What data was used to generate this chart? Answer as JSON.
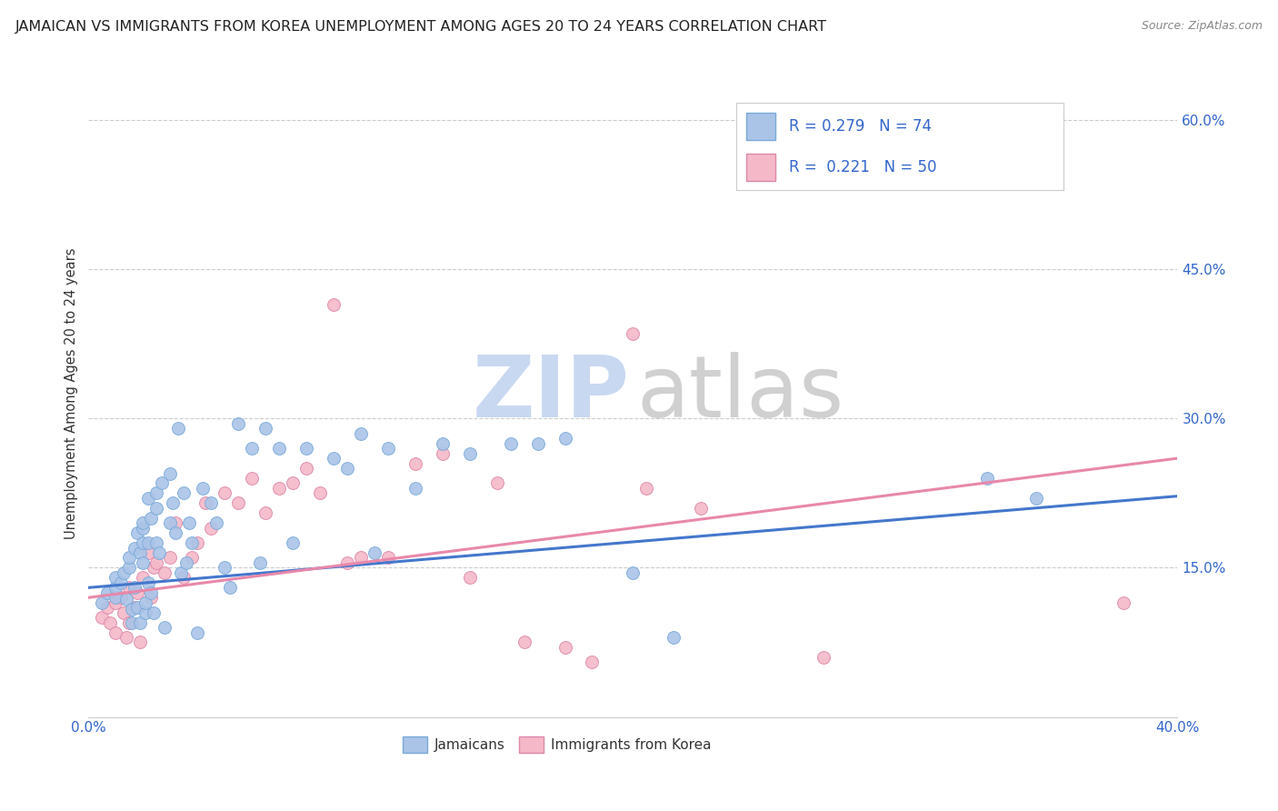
{
  "title": "JAMAICAN VS IMMIGRANTS FROM KOREA UNEMPLOYMENT AMONG AGES 20 TO 24 YEARS CORRELATION CHART",
  "source": "Source: ZipAtlas.com",
  "ylabel": "Unemployment Among Ages 20 to 24 years",
  "xlim": [
    0.0,
    0.4
  ],
  "ylim": [
    0.0,
    0.65
  ],
  "xtick_positions": [
    0.0,
    0.4
  ],
  "xtick_labels": [
    "0.0%",
    "40.0%"
  ],
  "yticks_right": [
    0.15,
    0.3,
    0.45,
    0.6
  ],
  "ytick_labels_right": [
    "15.0%",
    "30.0%",
    "45.0%",
    "60.0%"
  ],
  "background_color": "#ffffff",
  "grid_color": "#cccccc",
  "title_color": "#222222",
  "title_fontsize": 11.5,
  "watermark_color_zip": "#c8d8f0",
  "watermark_color_atlas": "#d0d0d0",
  "legend_color": "#3366cc",
  "legend_label1": "Jamaicans",
  "legend_label2": "Immigrants from Korea",
  "color_jamaican": "#aac4e8",
  "color_korean": "#f4b8c8",
  "line_color_jamaican": "#4477cc",
  "line_color_korean": "#e888aa",
  "scatter_edge_jamaican": "#7aaad8",
  "scatter_edge_korean": "#dd88aa",
  "jamaican_x": [
    0.005,
    0.007,
    0.01,
    0.01,
    0.01,
    0.012,
    0.013,
    0.014,
    0.015,
    0.015,
    0.016,
    0.016,
    0.017,
    0.017,
    0.018,
    0.018,
    0.019,
    0.019,
    0.02,
    0.02,
    0.02,
    0.02,
    0.021,
    0.021,
    0.022,
    0.022,
    0.022,
    0.023,
    0.023,
    0.024,
    0.025,
    0.025,
    0.025,
    0.026,
    0.027,
    0.028,
    0.03,
    0.03,
    0.031,
    0.032,
    0.033,
    0.034,
    0.035,
    0.036,
    0.037,
    0.038,
    0.04,
    0.042,
    0.045,
    0.047,
    0.05,
    0.052,
    0.055,
    0.06,
    0.063,
    0.065,
    0.07,
    0.075,
    0.08,
    0.09,
    0.095,
    0.1,
    0.105,
    0.11,
    0.12,
    0.13,
    0.14,
    0.155,
    0.165,
    0.175,
    0.2,
    0.215,
    0.33,
    0.348
  ],
  "jamaican_y": [
    0.115,
    0.125,
    0.12,
    0.13,
    0.14,
    0.135,
    0.145,
    0.118,
    0.15,
    0.16,
    0.108,
    0.095,
    0.13,
    0.17,
    0.185,
    0.11,
    0.165,
    0.095,
    0.19,
    0.175,
    0.155,
    0.195,
    0.105,
    0.115,
    0.22,
    0.175,
    0.135,
    0.125,
    0.2,
    0.105,
    0.225,
    0.21,
    0.175,
    0.165,
    0.235,
    0.09,
    0.245,
    0.195,
    0.215,
    0.185,
    0.29,
    0.145,
    0.225,
    0.155,
    0.195,
    0.175,
    0.085,
    0.23,
    0.215,
    0.195,
    0.15,
    0.13,
    0.295,
    0.27,
    0.155,
    0.29,
    0.27,
    0.175,
    0.27,
    0.26,
    0.25,
    0.285,
    0.165,
    0.27,
    0.23,
    0.275,
    0.265,
    0.275,
    0.275,
    0.28,
    0.145,
    0.08,
    0.24,
    0.22
  ],
  "korean_x": [
    0.005,
    0.007,
    0.008,
    0.01,
    0.01,
    0.012,
    0.013,
    0.014,
    0.015,
    0.015,
    0.017,
    0.018,
    0.019,
    0.02,
    0.022,
    0.023,
    0.024,
    0.025,
    0.028,
    0.03,
    0.032,
    0.035,
    0.038,
    0.04,
    0.043,
    0.045,
    0.05,
    0.055,
    0.06,
    0.065,
    0.07,
    0.075,
    0.08,
    0.085,
    0.09,
    0.095,
    0.1,
    0.11,
    0.12,
    0.13,
    0.14,
    0.15,
    0.16,
    0.175,
    0.185,
    0.2,
    0.205,
    0.225,
    0.27,
    0.38
  ],
  "korean_y": [
    0.1,
    0.11,
    0.095,
    0.115,
    0.085,
    0.12,
    0.105,
    0.08,
    0.13,
    0.095,
    0.11,
    0.125,
    0.075,
    0.14,
    0.165,
    0.12,
    0.15,
    0.155,
    0.145,
    0.16,
    0.195,
    0.14,
    0.16,
    0.175,
    0.215,
    0.19,
    0.225,
    0.215,
    0.24,
    0.205,
    0.23,
    0.235,
    0.25,
    0.225,
    0.415,
    0.155,
    0.16,
    0.16,
    0.255,
    0.265,
    0.14,
    0.235,
    0.075,
    0.07,
    0.055,
    0.385,
    0.23,
    0.21,
    0.06,
    0.115
  ],
  "jamaican_trend_x": [
    0.0,
    0.4
  ],
  "jamaican_trend_y": [
    0.13,
    0.222
  ],
  "korean_trend_x": [
    0.0,
    0.4
  ],
  "korean_trend_y": [
    0.12,
    0.26
  ]
}
